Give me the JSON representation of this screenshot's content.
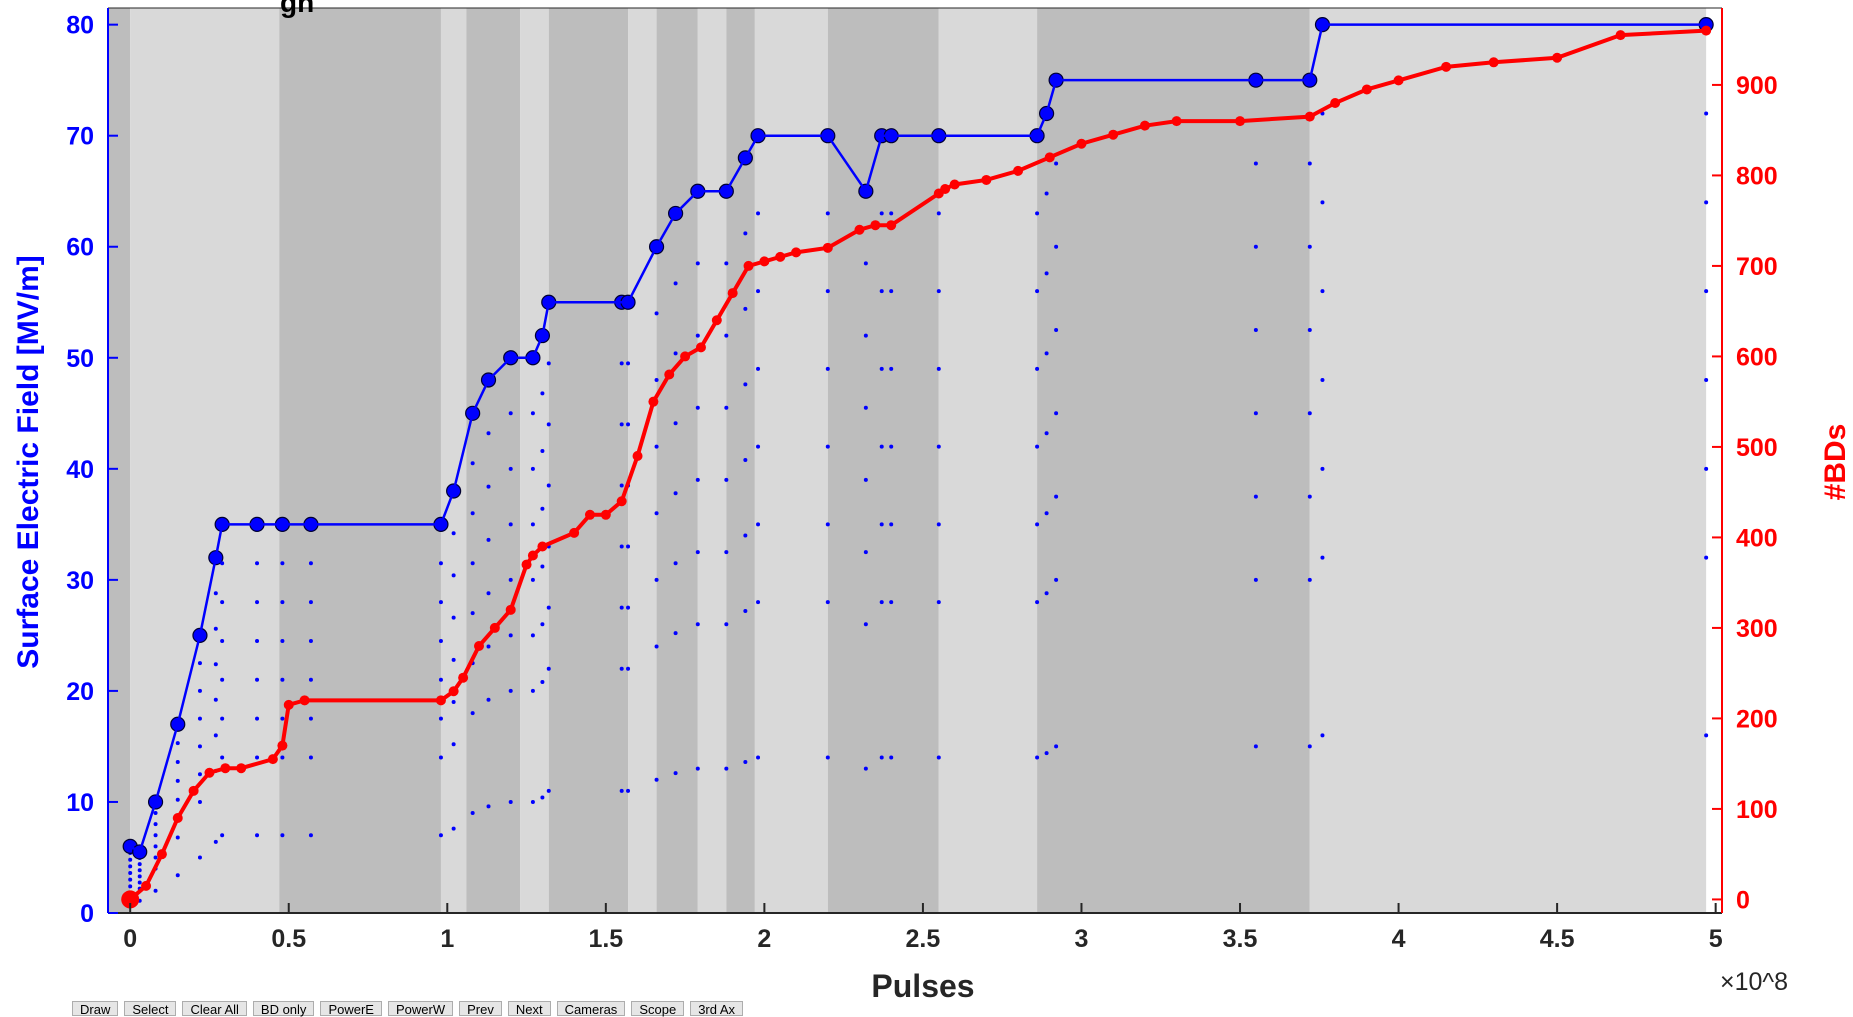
{
  "chart_data": {
    "type": "scatter",
    "title_visible": "gh",
    "title_red_visible": "",
    "xlabel": "Pulses",
    "x_exponent": "×10^8",
    "ylabel_left": "Surface Electric Field [MV/m]",
    "ylabel_right": "#BDs",
    "xlim": [
      -0.07,
      5.02
    ],
    "xticks": [
      0,
      0.5,
      1,
      1.5,
      2,
      2.5,
      3,
      3.5,
      4,
      4.5,
      5
    ],
    "xtick_labels": [
      "0",
      "0.5",
      "1",
      "1.5",
      "2",
      "2.5",
      "3",
      "3.5",
      "4",
      "4.5",
      "5"
    ],
    "ylim_left": [
      0,
      81.5
    ],
    "yticks_left": [
      0,
      10,
      20,
      30,
      40,
      50,
      60,
      70,
      80
    ],
    "ylim_right": [
      -15,
      985
    ],
    "yticks_right": [
      0,
      100,
      200,
      300,
      400,
      500,
      600,
      700,
      800,
      900
    ],
    "background_bands": [
      {
        "x0": -0.07,
        "x1": 0.0,
        "shade": "dark"
      },
      {
        "x0": 0.0,
        "x1": 0.47,
        "shade": "light"
      },
      {
        "x0": 0.47,
        "x1": 0.98,
        "shade": "dark"
      },
      {
        "x0": 0.98,
        "x1": 1.06,
        "shade": "light"
      },
      {
        "x0": 1.06,
        "x1": 1.23,
        "shade": "dark"
      },
      {
        "x0": 1.23,
        "x1": 1.32,
        "shade": "light"
      },
      {
        "x0": 1.32,
        "x1": 1.57,
        "shade": "dark"
      },
      {
        "x0": 1.57,
        "x1": 1.66,
        "shade": "light"
      },
      {
        "x0": 1.66,
        "x1": 1.79,
        "shade": "dark"
      },
      {
        "x0": 1.79,
        "x1": 1.88,
        "shade": "light"
      },
      {
        "x0": 1.88,
        "x1": 1.97,
        "shade": "dark"
      },
      {
        "x0": 1.97,
        "x1": 2.2,
        "shade": "light"
      },
      {
        "x0": 2.2,
        "x1": 2.55,
        "shade": "dark"
      },
      {
        "x0": 2.55,
        "x1": 2.86,
        "shade": "light"
      },
      {
        "x0": 2.86,
        "x1": 3.72,
        "shade": "dark"
      },
      {
        "x0": 3.72,
        "x1": 4.97,
        "shade": "light"
      }
    ],
    "series": [
      {
        "name": "Surface Electric Field",
        "axis": "left",
        "color": "#0000ff",
        "style": "line",
        "x": [
          0.0,
          0.03,
          0.08,
          0.15,
          0.22,
          0.27,
          0.29,
          0.4,
          0.48,
          0.57,
          0.98,
          1.02,
          1.08,
          1.13,
          1.2,
          1.27,
          1.3,
          1.32,
          1.55,
          1.57,
          1.66,
          1.72,
          1.79,
          1.88,
          1.94,
          1.98,
          2.2,
          2.32,
          2.37,
          2.4,
          2.55,
          2.86,
          2.89,
          2.92,
          3.55,
          3.72,
          3.76,
          4.97
        ],
        "y": [
          6,
          5.5,
          10,
          17,
          25,
          32,
          35,
          35,
          35,
          35,
          35,
          38,
          45,
          48,
          50,
          50,
          52,
          55,
          55,
          55,
          60,
          63,
          65,
          65,
          68,
          70,
          70,
          65,
          70,
          70,
          70,
          70,
          72,
          75,
          75,
          75,
          80,
          80
        ]
      },
      {
        "name": "#BDs",
        "axis": "right",
        "color": "#ff0000",
        "style": "line_markers",
        "x": [
          0.0,
          0.05,
          0.1,
          0.15,
          0.2,
          0.25,
          0.3,
          0.35,
          0.45,
          0.48,
          0.5,
          0.55,
          0.98,
          1.02,
          1.05,
          1.1,
          1.15,
          1.2,
          1.25,
          1.27,
          1.3,
          1.4,
          1.45,
          1.5,
          1.55,
          1.6,
          1.65,
          1.7,
          1.75,
          1.8,
          1.85,
          1.9,
          1.95,
          2.0,
          2.05,
          2.1,
          2.2,
          2.3,
          2.35,
          2.4,
          2.55,
          2.57,
          2.6,
          2.7,
          2.8,
          2.9,
          3.0,
          3.1,
          3.2,
          3.3,
          3.5,
          3.72,
          3.8,
          3.9,
          4.0,
          4.15,
          4.3,
          4.5,
          4.7,
          4.97
        ],
        "y": [
          0,
          15,
          50,
          90,
          120,
          140,
          145,
          145,
          155,
          170,
          215,
          220,
          220,
          230,
          245,
          280,
          300,
          320,
          370,
          380,
          390,
          405,
          425,
          425,
          440,
          490,
          550,
          580,
          600,
          610,
          640,
          670,
          700,
          705,
          710,
          715,
          720,
          740,
          745,
          745,
          780,
          785,
          790,
          795,
          805,
          820,
          835,
          845,
          855,
          860,
          860,
          865,
          880,
          895,
          905,
          920,
          925,
          930,
          955,
          960
        ]
      }
    ]
  },
  "toolbar": {
    "buttons": [
      "Draw",
      "Select",
      "Clear All",
      "BD only",
      "PowerE",
      "PowerW",
      "Prev",
      "Next",
      "Cameras",
      "Scope",
      "3rd Ax"
    ]
  },
  "colors": {
    "band_light": "#d9d9d9",
    "band_dark": "#bdbdbd",
    "axis_left": "#0000ff",
    "axis_right": "#ff0000",
    "axis_x": "#262626"
  }
}
